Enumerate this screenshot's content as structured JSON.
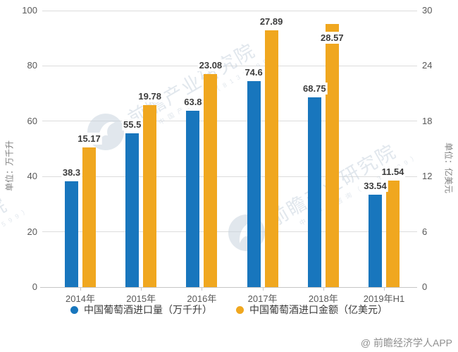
{
  "watermark": {
    "brand_text": "前瞻产业研究院",
    "small_text": "中国产业咨询（8139599）"
  },
  "footer": {
    "credit": "@ 前瞻经济学人APP"
  },
  "palette": {
    "volume_bar": "#1876bd",
    "value_bar": "#f0a71f",
    "grid_line": "#dcdcdc",
    "axis_line": "#c6c6c6",
    "tick_label": "#595959",
    "data_label": "#3c3c3c",
    "watermark": "#c9d4df",
    "footer_text": "#8f8f8f"
  },
  "chart_data": {
    "type": "bar",
    "categories": [
      "2014年",
      "2015年",
      "2016年",
      "2017年",
      "2018年",
      "2019年H1"
    ],
    "series": [
      {
        "name": "中国葡萄酒进口量（万千升）",
        "axis": "left",
        "color": "#1876bd",
        "values": [
          38.3,
          55.5,
          63.8,
          74.6,
          68.75,
          33.54
        ],
        "label_dy": [
          0,
          0,
          0,
          0,
          0,
          0
        ]
      },
      {
        "name": "中国葡萄酒进口金额（亿美元）",
        "axis": "right",
        "color": "#f0a71f",
        "values": [
          15.17,
          19.78,
          23.08,
          27.89,
          28.57,
          11.54
        ],
        "label_dy": [
          0,
          0,
          0,
          0,
          32,
          0
        ]
      }
    ],
    "left_axis": {
      "title": "单位：万千升",
      "ticks": [
        0,
        20,
        40,
        60,
        80,
        100
      ],
      "max": 100
    },
    "right_axis": {
      "title": "单位：亿美元",
      "ticks": [
        0,
        6,
        12,
        18,
        24,
        30
      ],
      "max": 30
    },
    "legend_position": "bottom",
    "grid": true,
    "title": ""
  }
}
